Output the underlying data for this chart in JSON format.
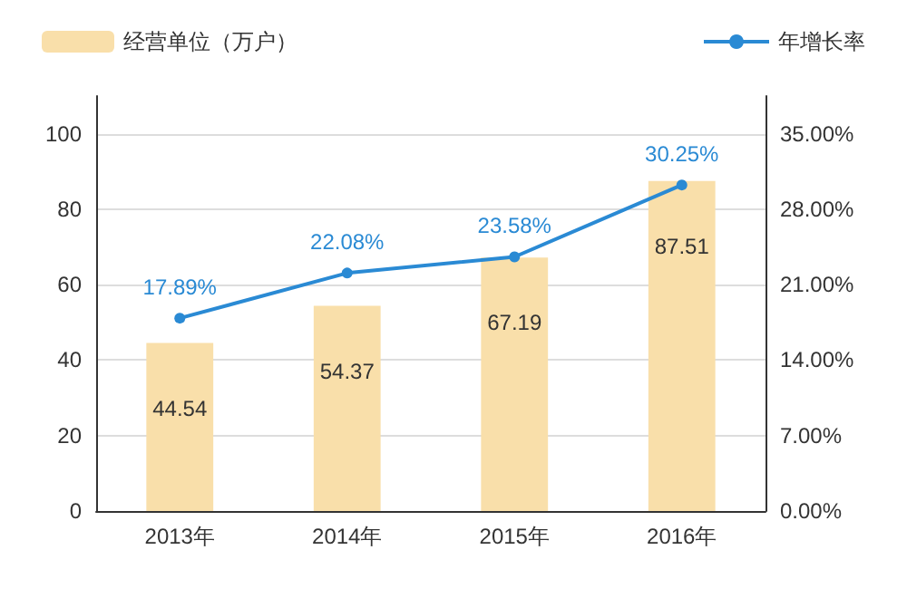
{
  "chart_data": {
    "type": "bar",
    "categories": [
      "2013年",
      "2014年",
      "2015年",
      "2016年"
    ],
    "series": [
      {
        "name": "经营单位（万户）",
        "color": "#f9dfaa",
        "values": [
          44.54,
          54.37,
          67.19,
          87.51
        ],
        "value_labels": [
          "44.54",
          "54.37",
          "67.19",
          "87.51"
        ]
      },
      {
        "name": "年增长率",
        "type": "line",
        "axis": "y2",
        "color": "#2a8ad4",
        "values": [
          17.89,
          22.08,
          23.58,
          30.25
        ],
        "value_labels": [
          "17.89%",
          "22.08%",
          "23.58%",
          "30.25%"
        ]
      }
    ],
    "ylim": [
      0,
      110
    ],
    "yticks": [
      0,
      20,
      40,
      60,
      80,
      100
    ],
    "y2lim": [
      0,
      38.5
    ],
    "y2ticks": [
      {
        "value": 0,
        "label": "0.00%"
      },
      {
        "value": 7,
        "label": "7.00%"
      },
      {
        "value": 14,
        "label": "14.00%"
      },
      {
        "value": 21,
        "label": "21.00%"
      },
      {
        "value": 28,
        "label": "28.00%"
      },
      {
        "value": 35,
        "label": "35.00%"
      }
    ],
    "grid": "y",
    "legend": "top",
    "marker": "circle"
  }
}
